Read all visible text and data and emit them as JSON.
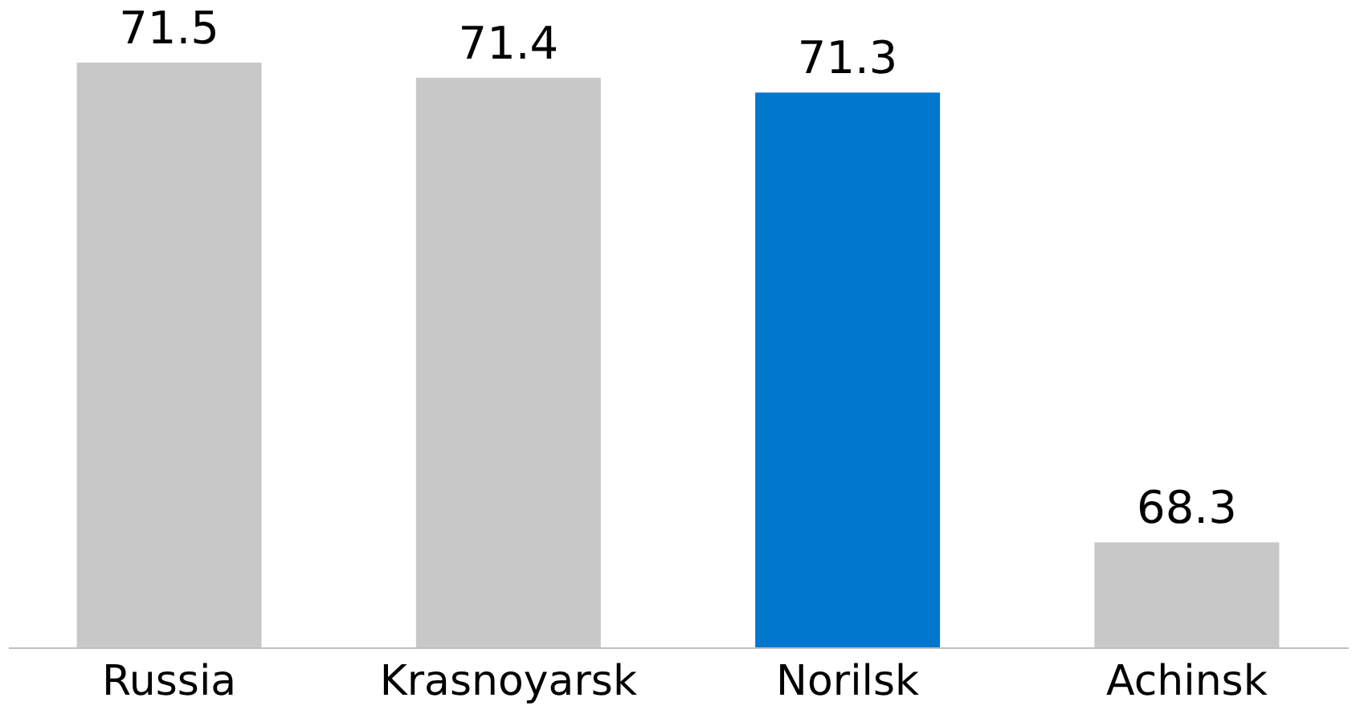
{
  "chart_data": {
    "type": "bar",
    "categories": [
      "Russia",
      "Krasnoyarsk",
      "Norilsk",
      "Achinsk"
    ],
    "values": [
      71.5,
      71.4,
      71.3,
      68.3
    ],
    "colors": [
      "#c8c8c8",
      "#c8c8c8",
      "#0077cc",
      "#c8c8c8"
    ],
    "ylim": [
      67.6,
      71.5
    ],
    "tick_labels": "x",
    "data_labels": true
  }
}
